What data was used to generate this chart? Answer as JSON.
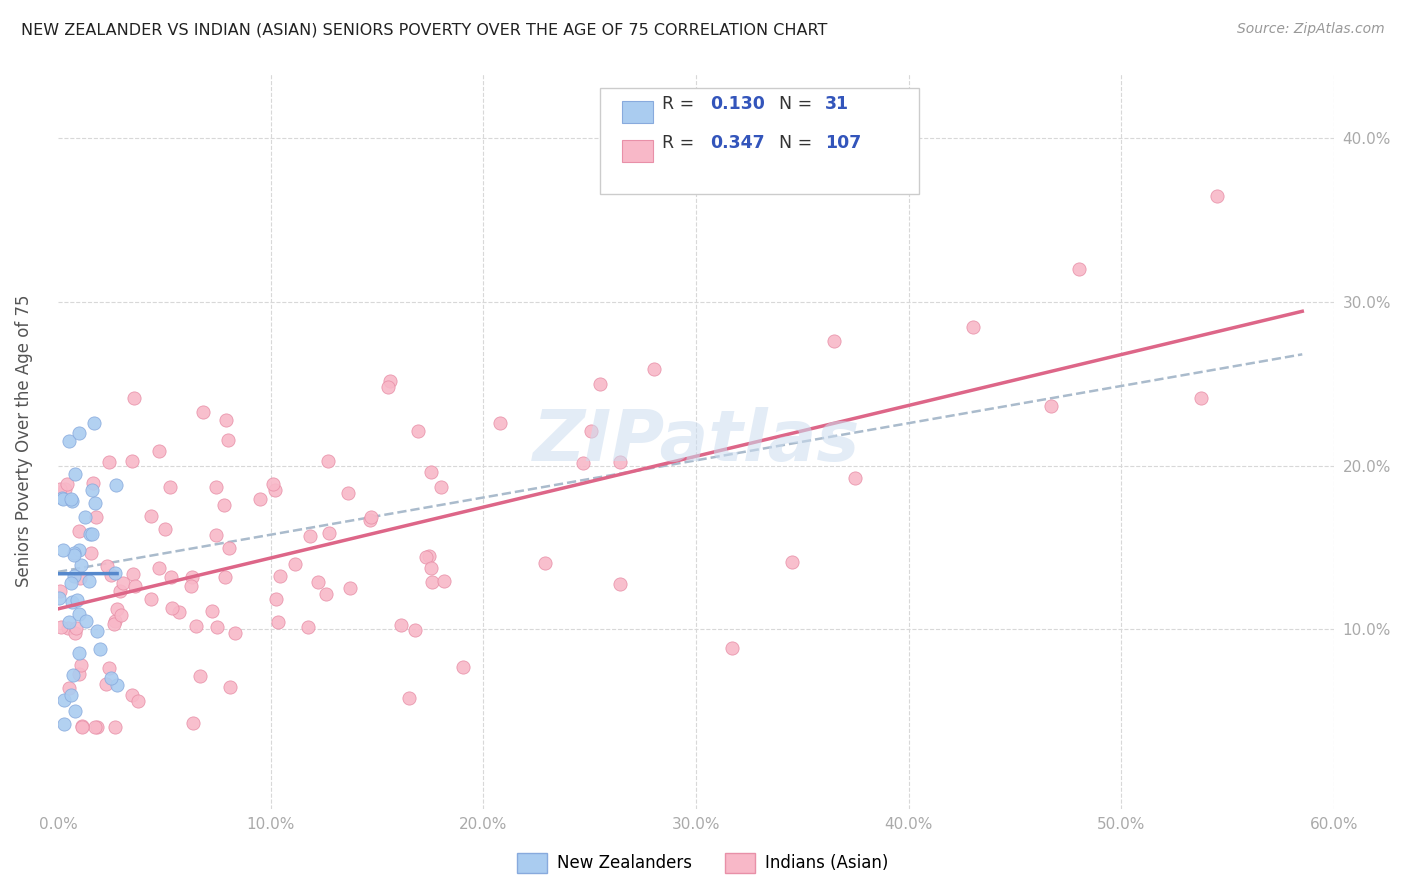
{
  "title": "NEW ZEALANDER VS INDIAN (ASIAN) SENIORS POVERTY OVER THE AGE OF 75 CORRELATION CHART",
  "source": "Source: ZipAtlas.com",
  "ylabel": "Seniors Poverty Over the Age of 75",
  "xlim": [
    0.0,
    0.6
  ],
  "ylim": [
    -0.01,
    0.44
  ],
  "xticks": [
    0.0,
    0.1,
    0.2,
    0.3,
    0.4,
    0.5,
    0.6
  ],
  "yticks": [
    0.0,
    0.1,
    0.2,
    0.3,
    0.4
  ],
  "xticklabels": [
    "0.0%",
    "10.0%",
    "20.0%",
    "30.0%",
    "40.0%",
    "50.0%",
    "60.0%"
  ],
  "yticklabels_right": [
    "",
    "10.0%",
    "20.0%",
    "30.0%",
    "40.0%"
  ],
  "nz_color": "#aaccf0",
  "nz_edge_color": "#88aadd",
  "nz_line_color": "#5588cc",
  "nz_R": 0.13,
  "nz_N": 31,
  "ind_color": "#f8b8c8",
  "ind_edge_color": "#e890a8",
  "ind_line_color": "#dd6688",
  "ind_R": 0.347,
  "ind_N": 107,
  "dash_line_color": "#aabbcc",
  "watermark": "ZIPatlas",
  "background_color": "#ffffff",
  "grid_color": "#d8d8d8",
  "title_color": "#222222",
  "axis_label_color": "#555555",
  "tick_color": "#aaaaaa",
  "legend_color": "#3355bb",
  "seed_nz": 42,
  "seed_ind": 99
}
